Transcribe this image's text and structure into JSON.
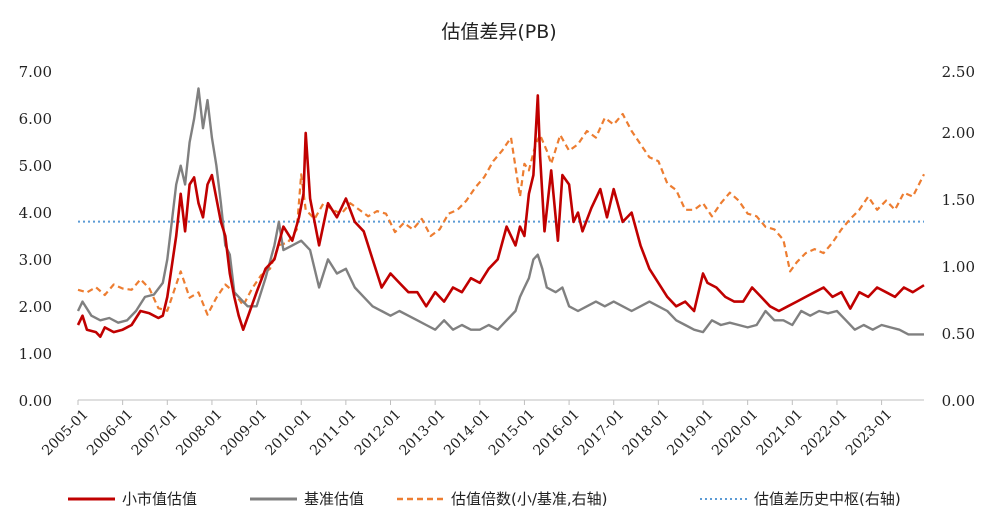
{
  "chart_data": {
    "type": "line",
    "title": "估值差异(PB)",
    "xlabel": "",
    "ylabel": "",
    "ylim": [
      0,
      7
    ],
    "y2lim": [
      0,
      2.5
    ],
    "y_ticks": [
      "0.00",
      "1.00",
      "2.00",
      "3.00",
      "4.00",
      "5.00",
      "6.00",
      "7.00"
    ],
    "y2_ticks": [
      "0.00",
      "0.50",
      "1.00",
      "1.50",
      "2.00",
      "2.50"
    ],
    "x_ticks": [
      "2005-01",
      "2006-01",
      "2007-01",
      "2008-01",
      "2009-01",
      "2010-01",
      "2011-01",
      "2012-01",
      "2013-01",
      "2014-01",
      "2015-01",
      "2016-01",
      "2017-01",
      "2018-01",
      "2019-01",
      "2020-01",
      "2021-01",
      "2022-01",
      "2023-01"
    ],
    "x_range": [
      2005.0,
      2023.95
    ],
    "colors": {
      "small": "#C00000",
      "bench": "#808080",
      "ratio": "#ED7D31",
      "center": "#5B9BD5"
    },
    "legend_position": "bottom",
    "series": [
      {
        "name": "小市值估值",
        "axis": "left",
        "style": "solid",
        "x": [
          2005.0,
          2005.1,
          2005.2,
          2005.4,
          2005.5,
          2005.6,
          2005.8,
          2006.0,
          2006.2,
          2006.4,
          2006.6,
          2006.8,
          2006.9,
          2007.0,
          2007.2,
          2007.3,
          2007.4,
          2007.5,
          2007.6,
          2007.7,
          2007.8,
          2007.9,
          2008.0,
          2008.1,
          2008.2,
          2008.3,
          2008.4,
          2008.5,
          2008.6,
          2008.7,
          2008.85,
          2009.0,
          2009.2,
          2009.4,
          2009.6,
          2009.8,
          2009.95,
          2010.05,
          2010.1,
          2010.2,
          2010.4,
          2010.6,
          2010.8,
          2011.0,
          2011.2,
          2011.4,
          2011.6,
          2011.8,
          2012.0,
          2012.2,
          2012.4,
          2012.6,
          2012.8,
          2013.0,
          2013.2,
          2013.4,
          2013.6,
          2013.8,
          2014.0,
          2014.2,
          2014.4,
          2014.6,
          2014.8,
          2014.9,
          2015.0,
          2015.1,
          2015.2,
          2015.3,
          2015.35,
          2015.45,
          2015.6,
          2015.75,
          2015.85,
          2016.0,
          2016.1,
          2016.2,
          2016.3,
          2016.5,
          2016.7,
          2016.85,
          2017.0,
          2017.2,
          2017.4,
          2017.6,
          2017.8,
          2018.0,
          2018.2,
          2018.4,
          2018.6,
          2018.8,
          2019.0,
          2019.1,
          2019.3,
          2019.5,
          2019.7,
          2019.9,
          2020.1,
          2020.3,
          2020.5,
          2020.7,
          2020.9,
          2021.1,
          2021.3,
          2021.5,
          2021.7,
          2021.9,
          2022.1,
          2022.3,
          2022.5,
          2022.7,
          2022.9,
          2023.1,
          2023.3,
          2023.5,
          2023.7,
          2023.95
        ],
        "values": [
          1.6,
          1.8,
          1.5,
          1.45,
          1.35,
          1.55,
          1.45,
          1.5,
          1.6,
          1.9,
          1.85,
          1.75,
          1.8,
          2.2,
          3.5,
          4.4,
          3.6,
          4.6,
          4.75,
          4.2,
          3.9,
          4.6,
          4.8,
          4.3,
          3.8,
          3.5,
          2.7,
          2.2,
          1.8,
          1.5,
          1.9,
          2.3,
          2.8,
          3.0,
          3.7,
          3.4,
          3.9,
          4.4,
          5.7,
          4.3,
          3.3,
          4.2,
          3.9,
          4.3,
          3.8,
          3.6,
          3.0,
          2.4,
          2.7,
          2.5,
          2.3,
          2.3,
          2.0,
          2.3,
          2.1,
          2.4,
          2.3,
          2.6,
          2.5,
          2.8,
          3.0,
          3.7,
          3.3,
          3.7,
          3.5,
          4.4,
          4.8,
          6.5,
          5.2,
          3.6,
          4.9,
          3.4,
          4.8,
          4.6,
          3.8,
          4.0,
          3.6,
          4.1,
          4.5,
          3.9,
          4.5,
          3.8,
          4.0,
          3.3,
          2.8,
          2.5,
          2.2,
          2.0,
          2.1,
          1.9,
          2.7,
          2.5,
          2.4,
          2.2,
          2.1,
          2.1,
          2.4,
          2.2,
          2.0,
          1.9,
          2.0,
          2.1,
          2.2,
          2.3,
          2.4,
          2.2,
          2.3,
          1.95,
          2.3,
          2.2,
          2.4,
          2.3,
          2.2,
          2.4,
          2.3,
          2.45
        ]
      },
      {
        "name": "基准估值",
        "axis": "left",
        "style": "solid",
        "x": [
          2005.0,
          2005.1,
          2005.3,
          2005.5,
          2005.7,
          2005.9,
          2006.1,
          2006.3,
          2006.5,
          2006.7,
          2006.9,
          2007.0,
          2007.1,
          2007.2,
          2007.3,
          2007.4,
          2007.5,
          2007.6,
          2007.7,
          2007.8,
          2007.9,
          2008.0,
          2008.1,
          2008.2,
          2008.3,
          2008.4,
          2008.5,
          2008.6,
          2008.8,
          2009.0,
          2009.2,
          2009.4,
          2009.5,
          2009.6,
          2009.8,
          2010.0,
          2010.2,
          2010.4,
          2010.6,
          2010.8,
          2011.0,
          2011.2,
          2011.4,
          2011.6,
          2011.8,
          2012.0,
          2012.2,
          2012.4,
          2012.6,
          2012.8,
          2013.0,
          2013.2,
          2013.4,
          2013.6,
          2013.8,
          2014.0,
          2014.2,
          2014.4,
          2014.6,
          2014.8,
          2014.9,
          2015.0,
          2015.1,
          2015.2,
          2015.3,
          2015.4,
          2015.5,
          2015.7,
          2015.85,
          2016.0,
          2016.2,
          2016.4,
          2016.6,
          2016.8,
          2017.0,
          2017.2,
          2017.4,
          2017.6,
          2017.8,
          2018.0,
          2018.2,
          2018.4,
          2018.6,
          2018.8,
          2019.0,
          2019.2,
          2019.4,
          2019.6,
          2019.8,
          2020.0,
          2020.2,
          2020.4,
          2020.6,
          2020.8,
          2021.0,
          2021.2,
          2021.4,
          2021.6,
          2021.8,
          2022.0,
          2022.2,
          2022.4,
          2022.6,
          2022.8,
          2023.0,
          2023.2,
          2023.4,
          2023.6,
          2023.95
        ],
        "values": [
          1.9,
          2.1,
          1.8,
          1.7,
          1.75,
          1.65,
          1.7,
          1.9,
          2.2,
          2.25,
          2.5,
          3.0,
          3.8,
          4.6,
          5.0,
          4.6,
          5.5,
          6.0,
          6.65,
          5.8,
          6.4,
          5.6,
          5.0,
          4.2,
          3.3,
          3.1,
          2.3,
          2.2,
          2.0,
          2.0,
          2.6,
          3.3,
          3.8,
          3.2,
          3.3,
          3.4,
          3.2,
          2.4,
          3.0,
          2.7,
          2.8,
          2.4,
          2.2,
          2.0,
          1.9,
          1.8,
          1.9,
          1.8,
          1.7,
          1.6,
          1.5,
          1.7,
          1.5,
          1.6,
          1.5,
          1.5,
          1.6,
          1.5,
          1.7,
          1.9,
          2.2,
          2.4,
          2.6,
          3.0,
          3.1,
          2.8,
          2.4,
          2.3,
          2.4,
          2.0,
          1.9,
          2.0,
          2.1,
          2.0,
          2.1,
          2.0,
          1.9,
          2.0,
          2.1,
          2.0,
          1.9,
          1.7,
          1.6,
          1.5,
          1.45,
          1.7,
          1.6,
          1.65,
          1.6,
          1.55,
          1.6,
          1.9,
          1.7,
          1.7,
          1.6,
          1.9,
          1.8,
          1.9,
          1.85,
          1.9,
          1.7,
          1.5,
          1.6,
          1.5,
          1.6,
          1.55,
          1.5,
          1.4,
          1.4
        ]
      },
      {
        "name": "估值倍数(小/基准,右轴)",
        "axis": "right",
        "style": "dashed",
        "x": [
          2005.0,
          2005.2,
          2005.4,
          2005.6,
          2005.8,
          2006.0,
          2006.2,
          2006.4,
          2006.6,
          2006.8,
          2007.0,
          2007.2,
          2007.3,
          2007.5,
          2007.7,
          2007.9,
          2008.1,
          2008.3,
          2008.5,
          2008.7,
          2008.9,
          2009.1,
          2009.3,
          2009.5,
          2009.7,
          2009.9,
          2010.0,
          2010.1,
          2010.3,
          2010.5,
          2010.7,
          2010.9,
          2011.1,
          2011.3,
          2011.5,
          2011.7,
          2011.9,
          2012.1,
          2012.3,
          2012.5,
          2012.7,
          2012.9,
          2013.1,
          2013.3,
          2013.5,
          2013.7,
          2013.9,
          2014.1,
          2014.3,
          2014.5,
          2014.7,
          2014.9,
          2015.0,
          2015.1,
          2015.25,
          2015.35,
          2015.5,
          2015.6,
          2015.8,
          2016.0,
          2016.2,
          2016.4,
          2016.6,
          2016.8,
          2017.0,
          2017.2,
          2017.4,
          2017.6,
          2017.8,
          2018.0,
          2018.2,
          2018.4,
          2018.6,
          2018.8,
          2019.0,
          2019.2,
          2019.4,
          2019.6,
          2019.8,
          2020.0,
          2020.2,
          2020.4,
          2020.6,
          2020.8,
          2020.95,
          2021.1,
          2021.3,
          2021.5,
          2021.7,
          2021.9,
          2022.1,
          2022.3,
          2022.5,
          2022.7,
          2022.9,
          2023.1,
          2023.3,
          2023.5,
          2023.7,
          2023.95
        ],
        "values": [
          0.84,
          0.82,
          0.86,
          0.8,
          0.88,
          0.85,
          0.84,
          0.92,
          0.85,
          0.7,
          0.68,
          0.88,
          0.98,
          0.78,
          0.82,
          0.65,
          0.78,
          0.88,
          0.82,
          0.72,
          0.85,
          0.95,
          1.0,
          1.18,
          1.2,
          1.3,
          1.72,
          1.45,
          1.38,
          1.5,
          1.45,
          1.42,
          1.5,
          1.45,
          1.4,
          1.44,
          1.42,
          1.28,
          1.35,
          1.3,
          1.38,
          1.25,
          1.3,
          1.42,
          1.45,
          1.52,
          1.62,
          1.7,
          1.82,
          1.9,
          2.0,
          1.55,
          1.8,
          1.75,
          1.95,
          2.02,
          1.9,
          1.8,
          2.02,
          1.9,
          1.95,
          2.05,
          2.0,
          2.15,
          2.1,
          2.18,
          2.05,
          1.95,
          1.85,
          1.82,
          1.65,
          1.6,
          1.45,
          1.45,
          1.5,
          1.4,
          1.5,
          1.58,
          1.52,
          1.42,
          1.4,
          1.32,
          1.3,
          1.22,
          0.98,
          1.05,
          1.12,
          1.15,
          1.12,
          1.2,
          1.3,
          1.38,
          1.45,
          1.55,
          1.45,
          1.52,
          1.45,
          1.58,
          1.55,
          1.72
        ]
      },
      {
        "name": "估值差历史中枢(右轴)",
        "axis": "right",
        "style": "dotted",
        "x": [
          2005.0,
          2023.95
        ],
        "values": [
          1.36,
          1.36
        ]
      }
    ]
  }
}
